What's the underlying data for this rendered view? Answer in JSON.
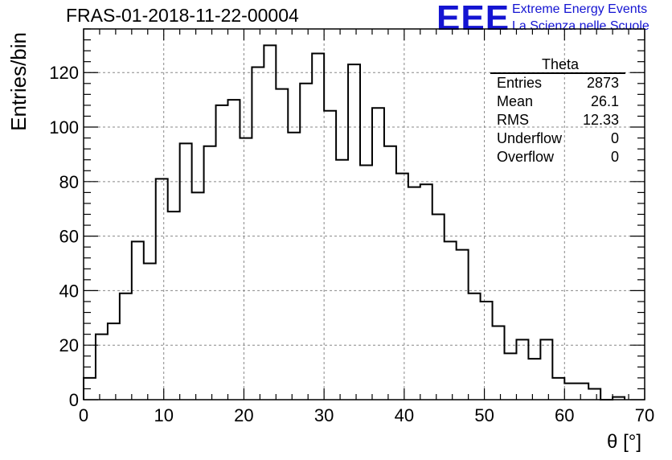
{
  "header": {
    "title": "FRAS-01-2018-11-22-00004",
    "logo_text": "EEE",
    "logo_line1": "Extreme Energy Events",
    "logo_line2": "La Scienza nelle Scuole",
    "logo_color": "#1414d2"
  },
  "stats_box": {
    "title": "Theta",
    "rows": [
      {
        "label": "Entries",
        "value": "2873"
      },
      {
        "label": "Mean",
        "value": "26.1"
      },
      {
        "label": "RMS",
        "value": "12.33"
      },
      {
        "label": "Underflow",
        "value": "0"
      },
      {
        "label": "Overflow",
        "value": "0"
      }
    ]
  },
  "chart_data": {
    "type": "histogram",
    "title": "FRAS-01-2018-11-22-00004",
    "xlabel": "θ [°]",
    "ylabel": "Entries/bin",
    "xlim": [
      0,
      70
    ],
    "ylim": [
      0,
      136
    ],
    "bin_width": 1.5,
    "x_ticks": [
      0,
      10,
      20,
      30,
      40,
      50,
      60,
      70
    ],
    "y_ticks": [
      0,
      20,
      40,
      60,
      80,
      100,
      120
    ],
    "grid": true,
    "line_color": "#000000",
    "values": [
      8,
      24,
      28,
      39,
      58,
      50,
      81,
      69,
      94,
      76,
      93,
      108,
      110,
      96,
      122,
      130,
      114,
      98,
      116,
      127,
      106,
      88,
      123,
      86,
      107,
      93,
      83,
      78,
      79,
      68,
      58,
      55,
      39,
      36,
      27,
      17,
      22,
      15,
      22,
      8,
      6,
      6,
      4,
      0,
      1
    ]
  }
}
